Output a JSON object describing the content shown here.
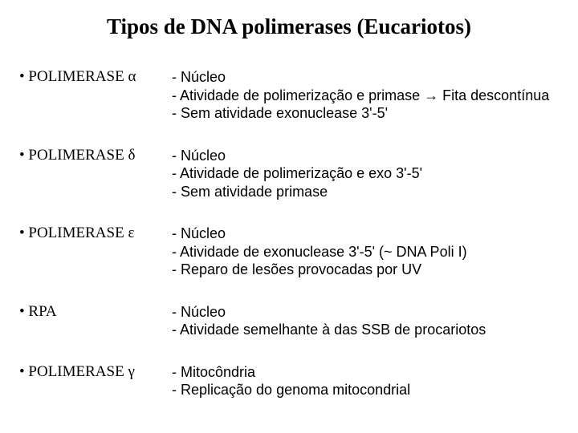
{
  "title": "Tipos de DNA polimerases (Eucariotos)",
  "entries": [
    {
      "label": "• POLIMERASE α",
      "lines": [
        "- Núcleo",
        "- Atividade  de polimerização e primase  → Fita descontínua",
        "- Sem atividade exonuclease 3'-5'"
      ]
    },
    {
      "label": "• POLIMERASE δ",
      "lines": [
        "- Núcleo",
        "- Atividade  de polimerização e exo 3'-5'",
        "- Sem atividade primase"
      ]
    },
    {
      "label": "• POLIMERASE ε",
      "lines": [
        " - Núcleo",
        " - Atividade  de exonuclease 3'-5' (~ DNA Poli I)",
        " - Reparo de lesões provocadas por UV"
      ]
    },
    {
      "label": "• RPA",
      "lines": [
        "  - Núcleo",
        "  - Atividade semelhante à das SSB de procariotos"
      ]
    },
    {
      "label": "• POLIMERASE γ",
      "lines": [
        "- Mitocôndria",
        " - Replicação do genoma mitocondrial"
      ]
    }
  ]
}
